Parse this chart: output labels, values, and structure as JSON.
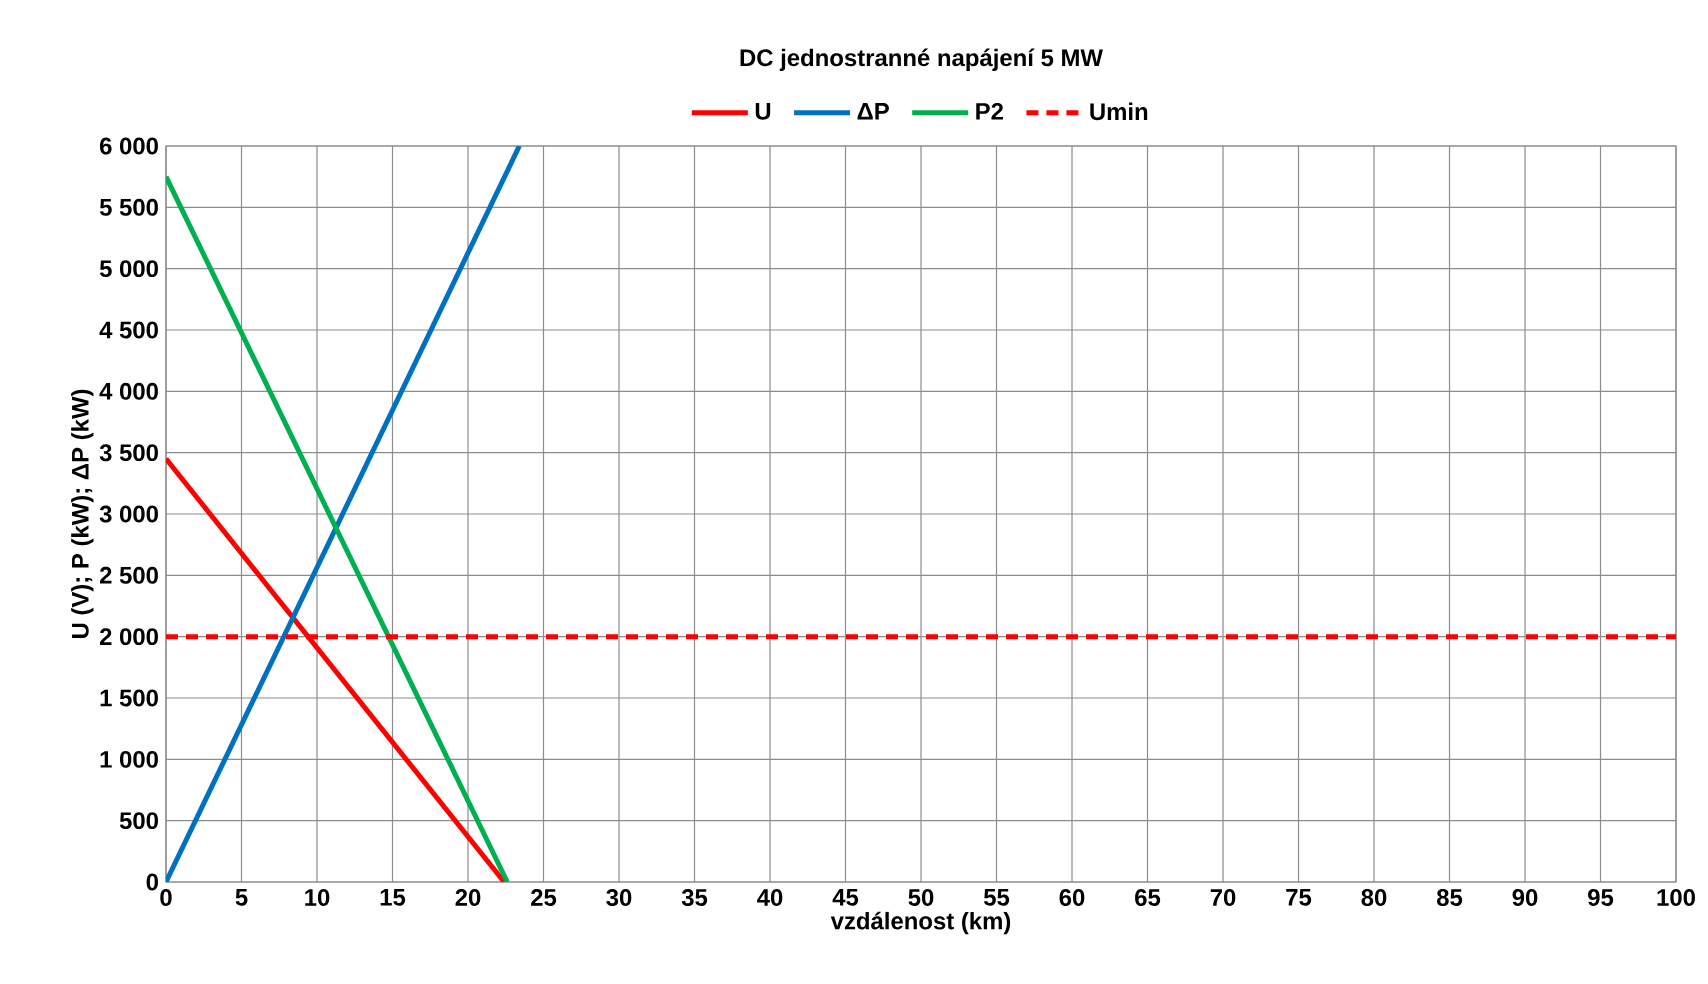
{
  "chart_data": {
    "type": "line",
    "title": "DC jednostranné napájení 5 MW",
    "xlabel": "vzdálenost (km)",
    "ylabel": "U (V); P (kW); ΔP (kW)",
    "series": [
      {
        "name": "U",
        "color": "#ff0000",
        "x": [
          0,
          22.4
        ],
        "values": [
          3450,
          0
        ],
        "line_style": "solid"
      },
      {
        "name": "ΔP",
        "color": "#0070c0",
        "x": [
          0,
          23.4
        ],
        "values": [
          0,
          6000
        ],
        "line_style": "solid"
      },
      {
        "name": "P2",
        "color": "#00b050",
        "x": [
          0,
          22.6
        ],
        "values": [
          5750,
          0
        ],
        "line_style": "solid"
      },
      {
        "name": "Umin",
        "color": "#ff0000",
        "x": [
          0,
          100
        ],
        "values": [
          2000,
          2000
        ],
        "line_style": "dashed"
      }
    ],
    "xlim": [
      0,
      100
    ],
    "ylim": [
      0,
      6000
    ],
    "xticks": [
      0,
      5,
      10,
      15,
      20,
      25,
      30,
      35,
      40,
      45,
      50,
      55,
      60,
      65,
      70,
      75,
      80,
      85,
      90,
      95,
      100
    ],
    "yticks": [
      0,
      500,
      {
        "value": 1000,
        "label": "1 000"
      },
      {
        "value": 1500,
        "label": "1 500"
      },
      {
        "value": 2000,
        "label": "2 000"
      },
      {
        "value": 2500,
        "label": "2 500"
      },
      {
        "value": 3000,
        "label": "3 000"
      },
      {
        "value": 3500,
        "label": "3 500"
      },
      {
        "value": 4000,
        "label": "4 000"
      },
      {
        "value": 4500,
        "label": "4 500"
      },
      {
        "value": 5000,
        "label": "5 000"
      },
      {
        "value": 5500,
        "label": "5 500"
      },
      {
        "value": 6000,
        "label": "6 000"
      }
    ],
    "grid": true,
    "legend": "top",
    "marker": "none"
  }
}
